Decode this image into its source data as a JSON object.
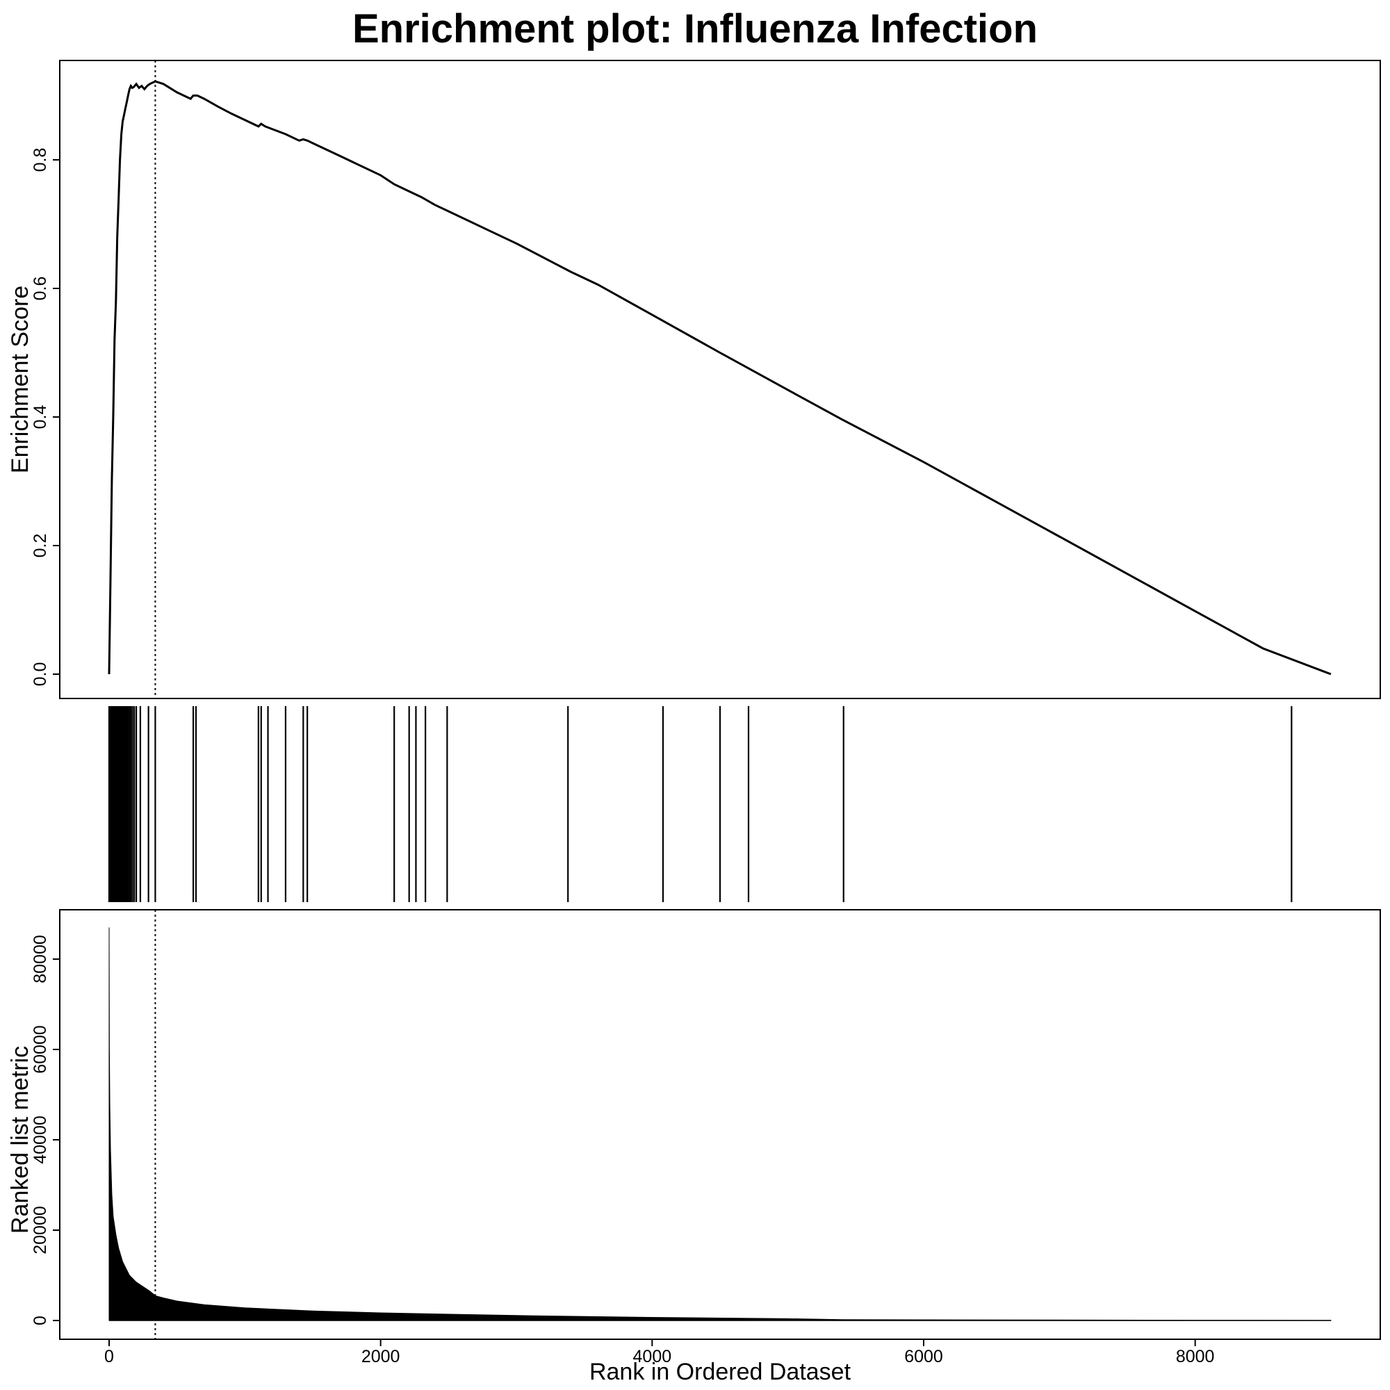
{
  "title": "Enrichment plot: Influenza Infection",
  "chart_data": [
    {
      "type": "line",
      "panel": "enrichment-score",
      "ylabel": "Enrichment Score",
      "xlim": [
        0,
        9000
      ],
      "ylim": [
        0,
        0.92
      ],
      "yticks": [
        "0.0",
        "0.2",
        "0.4",
        "0.6",
        "0.8"
      ],
      "ytick_values": [
        0,
        0.2,
        0.4,
        0.6,
        0.8
      ],
      "series": [
        {
          "x": [
            0,
            10,
            20,
            30,
            40,
            50,
            60,
            70,
            80,
            90,
            100,
            110,
            120,
            130,
            140,
            150,
            160,
            170,
            180,
            200,
            220,
            240,
            260,
            280,
            300,
            340,
            400,
            500,
            600,
            620,
            650,
            700,
            800,
            900,
            1000,
            1100,
            1120,
            1150,
            1200,
            1300,
            1400,
            1430,
            1460,
            1500,
            1700,
            2000,
            2100,
            2200,
            2300,
            2400,
            2500,
            2800,
            3000,
            3400,
            3600,
            4000,
            4500,
            5000,
            5400,
            6000,
            6500,
            7000,
            7500,
            8000,
            8500,
            9000
          ],
          "y": [
            0,
            0.15,
            0.3,
            0.4,
            0.52,
            0.58,
            0.68,
            0.74,
            0.8,
            0.84,
            0.86,
            0.87,
            0.88,
            0.89,
            0.9,
            0.91,
            0.915,
            0.912,
            0.913,
            0.918,
            0.912,
            0.915,
            0.91,
            0.915,
            0.918,
            0.922,
            0.918,
            0.905,
            0.895,
            0.9,
            0.9,
            0.895,
            0.883,
            0.872,
            0.862,
            0.852,
            0.856,
            0.852,
            0.848,
            0.84,
            0.83,
            0.832,
            0.83,
            0.826,
            0.806,
            0.776,
            0.762,
            0.752,
            0.742,
            0.73,
            0.72,
            0.69,
            0.67,
            0.626,
            0.606,
            0.559,
            0.5,
            0.442,
            0.396,
            0.33,
            0.272,
            0.214,
            0.156,
            0.098,
            0.04,
            0.0
          ]
        }
      ],
      "peak_rank": 340
    },
    {
      "type": "bar",
      "panel": "gene-hits",
      "hit_positions": [
        0,
        10,
        18,
        26,
        34,
        42,
        50,
        58,
        66,
        74,
        82,
        90,
        98,
        106,
        114,
        122,
        130,
        140,
        150,
        160,
        172,
        185,
        200,
        230,
        290,
        340,
        620,
        640,
        1100,
        1120,
        1170,
        1300,
        1430,
        1460,
        2100,
        2210,
        2260,
        2330,
        2490,
        3380,
        4080,
        4500,
        4710,
        5410,
        8710
      ]
    },
    {
      "type": "area",
      "panel": "ranked-list-metric",
      "xlabel": "Rank in Ordered Dataset",
      "ylabel": "Ranked list metric",
      "xlim": [
        0,
        9000
      ],
      "ylim": [
        0,
        88000
      ],
      "xticks": [
        "0",
        "2000",
        "4000",
        "6000",
        "8000"
      ],
      "xtick_values": [
        0,
        2000,
        4000,
        6000,
        8000
      ],
      "yticks": [
        "0",
        "20000",
        "40000",
        "60000",
        "80000"
      ],
      "ytick_values": [
        0,
        20000,
        40000,
        60000,
        80000
      ],
      "x": [
        0,
        2,
        5,
        10,
        20,
        30,
        50,
        70,
        100,
        150,
        200,
        300,
        340,
        400,
        500,
        700,
        1000,
        1500,
        2000,
        3000,
        4000,
        5000,
        5400,
        6000,
        7000,
        8000,
        9000
      ],
      "values": [
        87000,
        60000,
        48000,
        38000,
        28000,
        23000,
        19000,
        16000,
        13000,
        10000,
        8500,
        6500,
        5500,
        5000,
        4300,
        3500,
        2800,
        2100,
        1700,
        1100,
        700,
        400,
        200,
        150,
        100,
        60,
        30
      ],
      "peak_rank": 340
    }
  ]
}
